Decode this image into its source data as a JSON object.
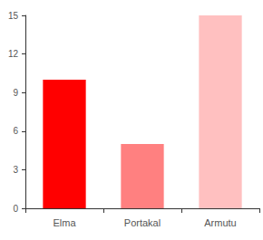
{
  "chart_data": {
    "type": "bar",
    "categories": [
      "Elma",
      "Portakal",
      "Armutu"
    ],
    "values": [
      10,
      5,
      15
    ],
    "colors": [
      "#ff0000",
      "#ff8080",
      "#ffc0c0"
    ],
    "ylim": [
      0,
      15
    ],
    "yticks": [
      0,
      3,
      6,
      9,
      12,
      15
    ],
    "grid": false
  }
}
